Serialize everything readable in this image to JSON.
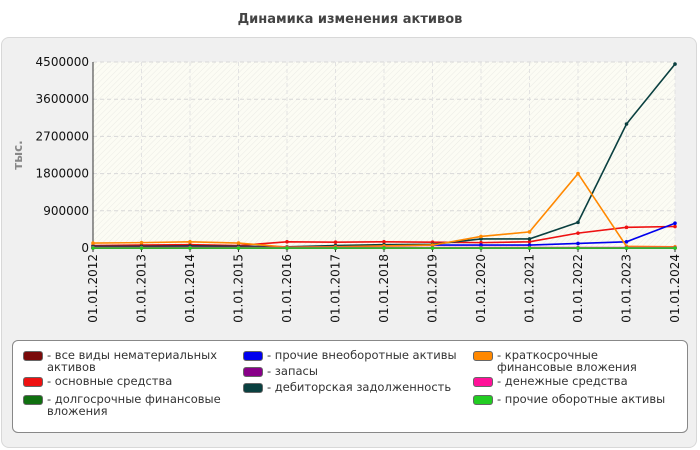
{
  "chart_data": {
    "type": "line",
    "title": "Динамика изменения активов",
    "ylabel": "тыс.",
    "xlabel": "",
    "ylim": [
      0,
      4500000
    ],
    "yticks": [
      "0",
      "900000",
      "1800000",
      "2700000",
      "3600000",
      "4500000"
    ],
    "grid": true,
    "legend_position": "bottom",
    "categories": [
      "01.01.2012",
      "01.01.2013",
      "01.01.2014",
      "01.01.2015",
      "01.01.2016",
      "01.01.2017",
      "01.01.2018",
      "01.01.2019",
      "01.01.2020",
      "01.01.2021",
      "01.01.2022",
      "01.01.2023",
      "01.01.2024"
    ],
    "series": [
      {
        "name": "- все виды нематериальных активов",
        "color": "#7a0a0a",
        "values": [
          0,
          0,
          0,
          0,
          0,
          0,
          0,
          0,
          0,
          0,
          0,
          0,
          0
        ]
      },
      {
        "name": "- основные средства",
        "color": "#ee1111",
        "values": [
          60000,
          70000,
          80000,
          60000,
          150000,
          140000,
          150000,
          140000,
          130000,
          150000,
          360000,
          500000,
          520000
        ]
      },
      {
        "name": "- долгосрочные финансовые вложения",
        "color": "#107010",
        "values": [
          0,
          0,
          0,
          0,
          0,
          0,
          0,
          0,
          0,
          0,
          0,
          0,
          0
        ]
      },
      {
        "name": "- прочие внеоборотные активы",
        "color": "#0000ee",
        "values": [
          10000,
          10000,
          10000,
          10000,
          20000,
          50000,
          60000,
          70000,
          70000,
          70000,
          110000,
          150000,
          600000
        ]
      },
      {
        "name": "- запасы",
        "color": "#880088",
        "values": [
          5000,
          5000,
          5000,
          5000,
          5000,
          5000,
          5000,
          5000,
          5000,
          5000,
          5000,
          5000,
          5000
        ]
      },
      {
        "name": "- дебиторская задолженность",
        "color": "#0a4040",
        "values": [
          40000,
          40000,
          50000,
          40000,
          30000,
          60000,
          80000,
          90000,
          220000,
          220000,
          620000,
          3000000,
          4450000
        ]
      },
      {
        "name": "- краткосрочные финансовые вложения",
        "color": "#ff8800",
        "values": [
          120000,
          130000,
          150000,
          120000,
          20000,
          30000,
          50000,
          70000,
          280000,
          390000,
          1800000,
          40000,
          30000
        ]
      },
      {
        "name": "- денежные средства",
        "color": "#ff1199",
        "values": [
          10000,
          10000,
          10000,
          10000,
          10000,
          10000,
          10000,
          10000,
          10000,
          10000,
          10000,
          10000,
          10000
        ]
      },
      {
        "name": "- прочие оборотные активы",
        "color": "#22cc22",
        "values": [
          0,
          0,
          0,
          0,
          0,
          0,
          0,
          0,
          0,
          0,
          0,
          0,
          0
        ]
      }
    ]
  },
  "legend": {
    "items": [
      {
        "label": "- все виды нематериальных активов",
        "color": "#7a0a0a"
      },
      {
        "label": "- основные средства",
        "color": "#ee1111"
      },
      {
        "label": "- долгосрочные финансовые вложения",
        "color": "#107010"
      },
      {
        "label": "- прочие внеоборотные активы",
        "color": "#0000ee"
      },
      {
        "label": "- запасы",
        "color": "#880088"
      },
      {
        "label": "- дебиторская задолженность",
        "color": "#0a4040"
      },
      {
        "label": "- краткосрочные финансовые вложения",
        "color": "#ff8800"
      },
      {
        "label": "- денежные средства",
        "color": "#ff1199"
      },
      {
        "label": "- прочие оборотные активы",
        "color": "#22cc22"
      }
    ]
  }
}
